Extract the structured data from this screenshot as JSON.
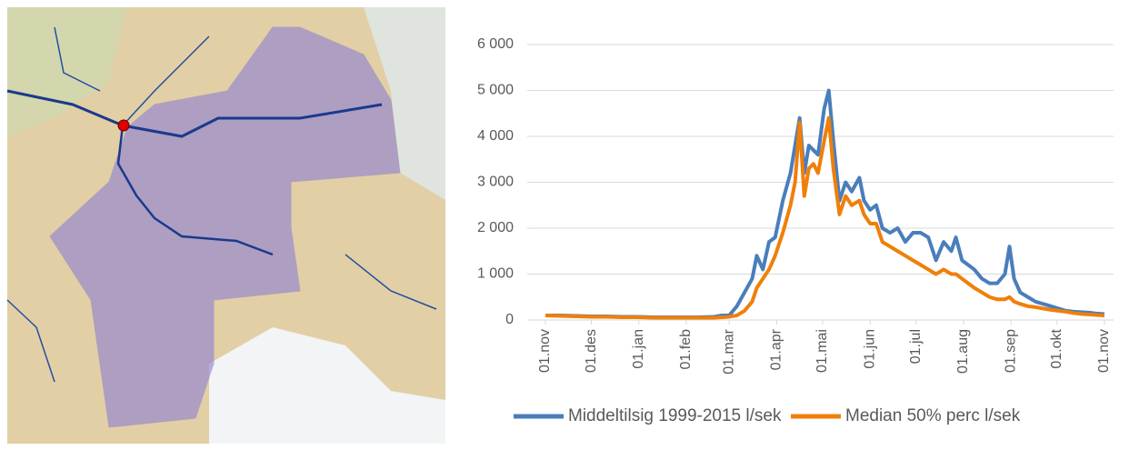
{
  "chart_data": {
    "type": "line",
    "x": [
      0,
      10,
      20,
      30,
      40,
      50,
      60,
      70,
      80,
      90,
      100,
      110,
      115,
      120,
      125,
      130,
      135,
      138,
      142,
      146,
      150,
      155,
      160,
      163,
      166,
      169,
      172,
      175,
      178,
      182,
      185,
      188,
      192,
      196,
      200,
      205,
      208,
      212,
      216,
      220,
      225,
      230,
      235,
      240,
      245,
      250,
      255,
      260,
      265,
      268,
      272,
      276,
      280,
      285,
      290,
      295,
      300,
      303,
      306,
      310,
      315,
      320,
      325,
      330,
      335,
      340,
      345,
      350,
      355,
      360,
      365
    ],
    "series": [
      {
        "name": "Middeltilsig 1999-2015 l/sek",
        "color": "#4a7ebb",
        "values": [
          100,
          100,
          90,
          80,
          80,
          70,
          70,
          60,
          60,
          60,
          60,
          70,
          100,
          100,
          300,
          600,
          900,
          1400,
          1100,
          1700,
          1800,
          2600,
          3200,
          3800,
          4400,
          3200,
          3800,
          3700,
          3600,
          4600,
          5000,
          3900,
          2600,
          3000,
          2800,
          3100,
          2600,
          2400,
          2500,
          2000,
          1900,
          2000,
          1700,
          1900,
          1900,
          1800,
          1300,
          1700,
          1500,
          1800,
          1300,
          1200,
          1100,
          900,
          800,
          800,
          1000,
          1600,
          900,
          600,
          500,
          400,
          350,
          300,
          250,
          200,
          180,
          170,
          160,
          140,
          130
        ]
      },
      {
        "name": "Median 50% perc l/sek",
        "color": "#f07f09",
        "values": [
          100,
          90,
          80,
          70,
          70,
          60,
          60,
          50,
          50,
          50,
          50,
          50,
          60,
          70,
          100,
          200,
          400,
          700,
          900,
          1100,
          1400,
          1900,
          2500,
          3000,
          4300,
          2700,
          3300,
          3400,
          3200,
          3900,
          4400,
          3300,
          2300,
          2700,
          2500,
          2600,
          2300,
          2100,
          2100,
          1700,
          1600,
          1500,
          1400,
          1300,
          1200,
          1100,
          1000,
          1100,
          1000,
          1000,
          900,
          800,
          700,
          600,
          500,
          450,
          450,
          500,
          400,
          350,
          300,
          280,
          250,
          220,
          200,
          180,
          150,
          130,
          120,
          110,
          100
        ]
      }
    ],
    "xlim": [
      0,
      365
    ],
    "xticks": [
      {
        "value": 0,
        "label": "01.nov"
      },
      {
        "value": 30,
        "label": "01.des"
      },
      {
        "value": 61,
        "label": "01.jan"
      },
      {
        "value": 92,
        "label": "01.feb"
      },
      {
        "value": 120,
        "label": "01.mar"
      },
      {
        "value": 151,
        "label": "01.apr"
      },
      {
        "value": 181,
        "label": "01.mai"
      },
      {
        "value": 212,
        "label": "01.jun"
      },
      {
        "value": 242,
        "label": "01.jul"
      },
      {
        "value": 273,
        "label": "01.aug"
      },
      {
        "value": 304,
        "label": "01.sep"
      },
      {
        "value": 334,
        "label": "01.okt"
      },
      {
        "value": 365,
        "label": "01.nov"
      }
    ],
    "ylim": [
      0,
      6000
    ],
    "yticks": [
      0,
      {
        "value": 1000,
        "label": "1 000"
      },
      {
        "value": 2000,
        "label": "2 000"
      },
      {
        "value": 3000,
        "label": "3 000"
      },
      {
        "value": 4000,
        "label": "4 000"
      },
      {
        "value": 5000,
        "label": "5 000"
      },
      {
        "value": 6000,
        "label": "6 000"
      }
    ],
    "grid": true
  }
}
